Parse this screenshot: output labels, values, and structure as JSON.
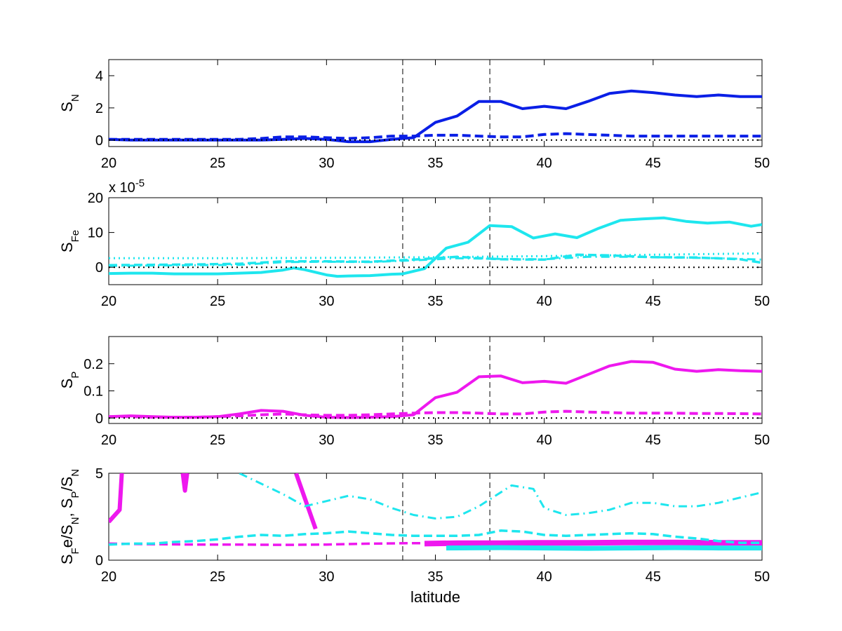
{
  "colors": {
    "blue": "#0a1fe6",
    "cyan": "#1ee6ee",
    "magenta": "#ee18ee",
    "black": "#000000"
  },
  "chart_data": [
    {
      "type": "line",
      "ylabel_main": "S",
      "ylabel_sub": "N",
      "xlabel": "",
      "xlim": [
        20,
        50
      ],
      "ylim": [
        -0.4,
        5
      ],
      "xticks": [
        "20",
        "25",
        "30",
        "35",
        "40",
        "45",
        "50"
      ],
      "yticks": [
        {
          "value": 0,
          "label": "0"
        },
        {
          "value": 2,
          "label": "2"
        },
        {
          "value": 4,
          "label": "4"
        }
      ],
      "exponent_label": "",
      "vlines": [
        33.5,
        37.5
      ],
      "grid": false,
      "legend": "none",
      "series": [
        {
          "style": "solid",
          "color": "blue",
          "width": 4,
          "x": [
            20,
            21,
            22,
            23,
            24,
            25,
            26,
            27,
            28,
            29,
            30,
            31,
            32,
            33,
            34,
            35,
            36,
            37,
            38,
            39,
            40,
            41,
            42,
            43,
            44,
            45,
            46,
            47,
            48,
            49,
            50
          ],
          "y": [
            0.05,
            0.0,
            0.0,
            0.0,
            0.0,
            0.0,
            0.0,
            0.0,
            0.05,
            0.1,
            0.05,
            -0.1,
            -0.1,
            0.05,
            0.15,
            1.1,
            1.5,
            2.4,
            2.4,
            1.95,
            2.1,
            1.95,
            2.4,
            2.9,
            3.05,
            2.95,
            2.8,
            2.7,
            2.8,
            2.7,
            2.7
          ]
        },
        {
          "style": "dashed",
          "color": "blue",
          "width": 4,
          "x": [
            20,
            21,
            22,
            23,
            24,
            25,
            26,
            27,
            28,
            29,
            30,
            31,
            32,
            33,
            34,
            35,
            36,
            37,
            38,
            39,
            40,
            41,
            42,
            43,
            44,
            45,
            46,
            47,
            48,
            49,
            50
          ],
          "y": [
            0.05,
            0.05,
            0.05,
            0.05,
            0.05,
            0.05,
            0.05,
            0.1,
            0.2,
            0.2,
            0.15,
            0.1,
            0.15,
            0.25,
            0.25,
            0.3,
            0.3,
            0.25,
            0.2,
            0.2,
            0.35,
            0.4,
            0.35,
            0.3,
            0.25,
            0.25,
            0.25,
            0.25,
            0.25,
            0.25,
            0.25
          ]
        },
        {
          "style": "dotted",
          "color": "black",
          "width": 2,
          "x": [
            20,
            50
          ],
          "y": [
            0,
            0
          ]
        }
      ]
    },
    {
      "type": "line",
      "ylabel_main": "S",
      "ylabel_sub": "Fe",
      "xlabel": "",
      "xlim": [
        20,
        50
      ],
      "ylim": [
        -5,
        20
      ],
      "xticks": [
        "20",
        "25",
        "30",
        "35",
        "40",
        "45",
        "50"
      ],
      "yticks": [
        {
          "value": 0,
          "label": "0"
        },
        {
          "value": 10,
          "label": "10"
        },
        {
          "value": 20,
          "label": "20"
        }
      ],
      "exponent_label": "x 10",
      "exponent_power": "-5",
      "vlines": [
        33.5,
        37.5
      ],
      "grid": false,
      "legend": "none",
      "series": [
        {
          "style": "solid",
          "color": "cyan",
          "width": 4,
          "x": [
            20,
            21,
            22,
            23,
            24,
            25,
            26,
            27,
            28,
            28.5,
            29,
            30,
            30.5,
            31,
            32,
            33,
            33.5,
            34.5,
            35.5,
            36.5,
            37.5,
            38.5,
            39.5,
            40.5,
            41.5,
            42.5,
            43.5,
            44.5,
            45.5,
            46.5,
            47.5,
            48.5,
            49.5,
            50
          ],
          "y": [
            -1.8,
            -1.7,
            -1.7,
            -1.9,
            -1.9,
            -1.9,
            -1.7,
            -1.5,
            -0.8,
            -0.2,
            -0.7,
            -2.2,
            -2.6,
            -2.5,
            -2.4,
            -2.0,
            -1.9,
            -0.4,
            5.5,
            7.2,
            12.0,
            11.7,
            8.4,
            9.6,
            8.5,
            11.2,
            13.5,
            13.9,
            14.2,
            13.2,
            12.7,
            13.0,
            11.8,
            12.3
          ]
        },
        {
          "style": "dashed",
          "color": "cyan",
          "width": 3.5,
          "x": [
            20,
            22,
            24,
            26,
            28,
            30,
            32,
            34,
            36,
            38,
            40,
            41.5,
            43,
            45,
            47,
            49,
            50
          ],
          "y": [
            0.6,
            0.7,
            0.8,
            1.0,
            1.7,
            1.7,
            1.6,
            2.2,
            3.0,
            2.3,
            2.2,
            3.6,
            3.4,
            2.9,
            2.8,
            2.3,
            1.3
          ]
        },
        {
          "style": "dotted",
          "color": "cyan",
          "width": 3,
          "x": [
            20,
            25,
            30,
            35,
            40,
            45,
            50
          ],
          "y": [
            2.6,
            2.6,
            2.7,
            2.9,
            3.2,
            3.6,
            4.0
          ]
        },
        {
          "style": "dashdot",
          "color": "cyan",
          "width": 3,
          "x": [
            20,
            22,
            24,
            26,
            28,
            30,
            32,
            34,
            36,
            38,
            40,
            42,
            44,
            46,
            48,
            50
          ],
          "y": [
            0.4,
            0.5,
            0.6,
            0.7,
            1.5,
            1.6,
            1.5,
            2.0,
            2.6,
            2.4,
            2.3,
            3.0,
            3.0,
            2.8,
            2.6,
            2.2
          ]
        },
        {
          "style": "dotted",
          "color": "black",
          "width": 2,
          "x": [
            20,
            50
          ],
          "y": [
            0,
            0
          ]
        }
      ]
    },
    {
      "type": "line",
      "ylabel_main": "S",
      "ylabel_sub": "P",
      "xlabel": "",
      "xlim": [
        20,
        50
      ],
      "ylim": [
        -0.02,
        0.3
      ],
      "xticks": [
        "20",
        "25",
        "30",
        "35",
        "40",
        "45",
        "50"
      ],
      "yticks": [
        {
          "value": 0,
          "label": "0"
        },
        {
          "value": 0.1,
          "label": "0.1"
        },
        {
          "value": 0.2,
          "label": "0.2"
        }
      ],
      "exponent_label": "",
      "vlines": [
        33.5,
        37.5
      ],
      "grid": false,
      "legend": "none",
      "series": [
        {
          "style": "solid",
          "color": "magenta",
          "width": 4,
          "x": [
            20,
            21,
            22,
            23,
            24,
            25,
            26,
            27,
            28,
            29,
            30,
            31,
            32,
            33,
            34,
            35,
            36,
            37,
            38,
            39,
            40,
            41,
            42,
            43,
            44,
            45,
            46,
            47,
            48,
            49,
            50
          ],
          "y": [
            0.005,
            0.008,
            0.005,
            0.003,
            0.003,
            0.005,
            0.015,
            0.028,
            0.025,
            0.01,
            0.003,
            0.002,
            0.003,
            0.005,
            0.012,
            0.075,
            0.095,
            0.152,
            0.155,
            0.13,
            0.135,
            0.128,
            0.16,
            0.192,
            0.208,
            0.205,
            0.18,
            0.172,
            0.178,
            0.174,
            0.172
          ]
        },
        {
          "style": "dashed",
          "color": "magenta",
          "width": 4,
          "x": [
            20,
            21,
            22,
            23,
            24,
            25,
            26,
            27,
            28,
            29,
            30,
            31,
            32,
            33,
            34,
            35,
            36,
            37,
            38,
            39,
            40,
            41,
            42,
            43,
            44,
            45,
            46,
            47,
            48,
            49,
            50
          ],
          "y": [
            0.005,
            0.005,
            0.003,
            0.003,
            0.003,
            0.005,
            0.008,
            0.012,
            0.015,
            0.012,
            0.01,
            0.01,
            0.012,
            0.015,
            0.018,
            0.02,
            0.02,
            0.018,
            0.015,
            0.015,
            0.022,
            0.025,
            0.022,
            0.02,
            0.018,
            0.018,
            0.018,
            0.017,
            0.017,
            0.016,
            0.015
          ]
        },
        {
          "style": "dotted",
          "color": "black",
          "width": 2,
          "x": [
            20,
            50
          ],
          "y": [
            0,
            0
          ]
        }
      ]
    },
    {
      "type": "line",
      "ylabel_parts": [
        {
          "t": "S",
          "sub": false
        },
        {
          "t": "F",
          "sub": true
        },
        {
          "t": "e/S",
          "sub": false
        },
        {
          "t": "N",
          "sub": true
        },
        {
          "t": ", S",
          "sub": false
        },
        {
          "t": "P",
          "sub": true
        },
        {
          "t": "/S",
          "sub": false
        },
        {
          "t": "N",
          "sub": true
        }
      ],
      "xlabel": "latitude",
      "xlim": [
        20,
        50
      ],
      "ylim": [
        0,
        5
      ],
      "xticks": [
        "20",
        "25",
        "30",
        "35",
        "40",
        "45",
        "50"
      ],
      "yticks": [
        {
          "value": 0,
          "label": "0"
        },
        {
          "value": 5,
          "label": "5"
        }
      ],
      "exponent_label": "",
      "vlines": [
        33.5,
        37.5
      ],
      "grid": false,
      "legend": "none",
      "series": [
        {
          "style": "solid",
          "color": "magenta",
          "width": 6,
          "x": [
            20,
            20.5,
            20.6
          ],
          "y": [
            2.2,
            2.9,
            5.0
          ]
        },
        {
          "style": "solid",
          "color": "magenta",
          "width": 6,
          "x": [
            23.4,
            23.5,
            23.6
          ],
          "y": [
            5.0,
            4.0,
            5.0
          ]
        },
        {
          "style": "solid",
          "color": "magenta",
          "width": 6,
          "x": [
            28.6,
            29.5
          ],
          "y": [
            5.0,
            1.8
          ]
        },
        {
          "style": "solid",
          "color": "magenta",
          "width": 8,
          "x": [
            34.5,
            36,
            38,
            40,
            42,
            44,
            46,
            48,
            50
          ],
          "y": [
            0.95,
            0.98,
            0.98,
            1.0,
            1.0,
            1.02,
            1.02,
            1.0,
            1.0
          ]
        },
        {
          "style": "solid",
          "color": "cyan",
          "width": 7,
          "x": [
            35.5,
            38,
            40,
            42,
            44,
            46,
            48,
            50
          ],
          "y": [
            0.7,
            0.72,
            0.7,
            0.68,
            0.7,
            0.72,
            0.7,
            0.7
          ]
        },
        {
          "style": "dashed",
          "color": "magenta",
          "width": 3.5,
          "x": [
            20,
            22,
            24,
            26,
            28,
            30,
            32,
            34,
            36,
            38,
            40,
            42,
            44,
            46,
            48,
            50
          ],
          "y": [
            0.95,
            0.92,
            0.9,
            0.9,
            0.88,
            0.9,
            0.95,
            0.98,
            0.98,
            1.0,
            0.98,
            0.98,
            1.0,
            1.0,
            0.98,
            0.98
          ]
        },
        {
          "style": "dashed",
          "color": "cyan",
          "width": 3.5,
          "x": [
            20,
            21,
            22,
            23,
            24,
            25,
            26,
            27,
            28,
            29,
            30,
            31,
            32,
            33,
            34,
            35,
            36,
            37,
            38,
            39,
            40,
            41,
            42,
            43,
            44,
            45,
            46,
            47,
            48,
            49,
            50
          ],
          "y": [
            0.9,
            0.95,
            0.95,
            1.05,
            1.1,
            1.2,
            1.35,
            1.45,
            1.4,
            1.5,
            1.55,
            1.65,
            1.55,
            1.45,
            1.4,
            1.4,
            1.4,
            1.45,
            1.7,
            1.65,
            1.45,
            1.4,
            1.45,
            1.5,
            1.55,
            1.5,
            1.35,
            1.25,
            1.1,
            1.0,
            1.0
          ]
        },
        {
          "style": "dashdot",
          "color": "cyan",
          "width": 3,
          "x": [
            26,
            27,
            28,
            29,
            30,
            31,
            32,
            33,
            34,
            35,
            36,
            37,
            38,
            38.5,
            39.5,
            40,
            41,
            42,
            43,
            44,
            45,
            46,
            47,
            48,
            49,
            50
          ],
          "y": [
            5.0,
            4.4,
            3.8,
            3.1,
            3.4,
            3.7,
            3.5,
            3.0,
            2.6,
            2.4,
            2.5,
            3.1,
            3.9,
            4.3,
            4.1,
            3.0,
            2.6,
            2.7,
            2.9,
            3.3,
            3.3,
            3.1,
            3.1,
            3.3,
            3.6,
            3.9
          ]
        }
      ]
    }
  ]
}
